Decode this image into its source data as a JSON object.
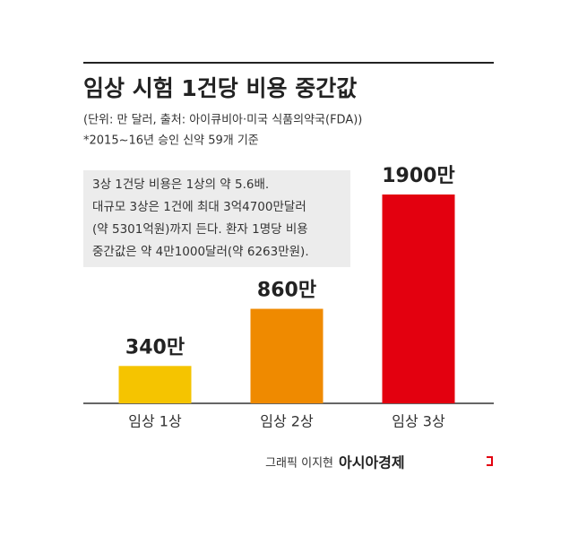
{
  "chart_data": {
    "type": "bar",
    "title": "임상 시험 1건당 비용 중간값",
    "subtitle": "(단위: 만 달러, 출처: 아이큐비아·미국 식품의약국(FDA))",
    "note": "*2015~16년 승인 신약 59개 기준",
    "annotation": [
      "3상 1건당 비용은 1상의 약 5.6배.",
      "대규모 3상은 1건에 최대 3억4700만달러",
      "(약 5301억원)까지 든다. 환자 1명당 비용",
      "중간값은 약 4만1000달러(약 6263만원)."
    ],
    "categories": [
      "임상 1상",
      "임상 2상",
      "임상 3상"
    ],
    "values": [
      340,
      860,
      1900
    ],
    "value_labels": [
      "340만",
      "860만",
      "1900만"
    ],
    "colors": [
      "#f5c400",
      "#ef8a00",
      "#e3000f"
    ],
    "credit": "그래픽 이지현",
    "source_brand": "아시아경제"
  }
}
